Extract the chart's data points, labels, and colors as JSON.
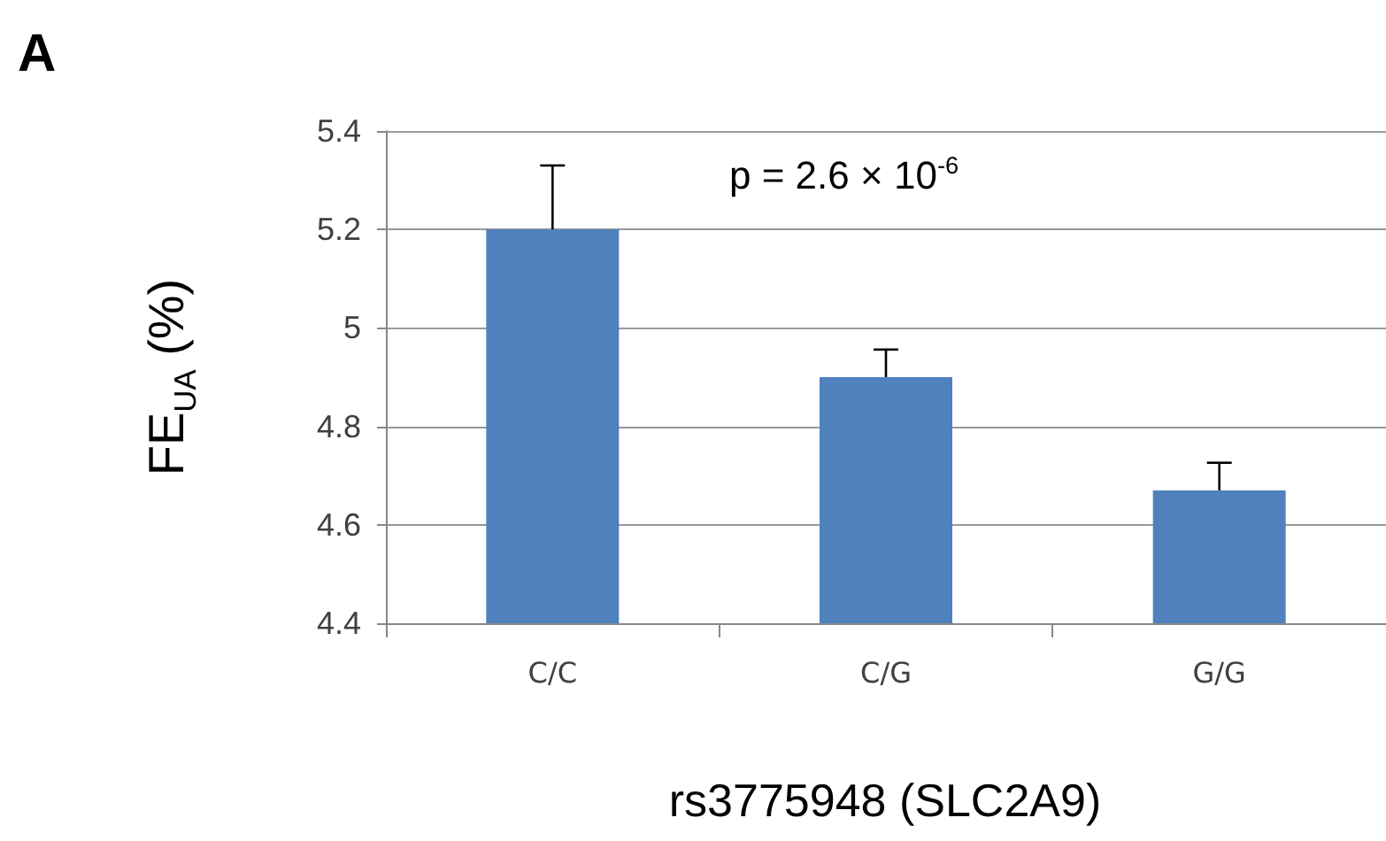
{
  "chart_data": {
    "type": "bar",
    "title": "A",
    "xlabel": "rs3775948 (SLC2A9)",
    "ylabel": "FE$_{UA}$ (%)",
    "annotations": [
      "p = 2.6 × 10$^{-6}$"
    ],
    "categories": [
      "C/C",
      "C/G",
      "G/G"
    ],
    "values": [
      5.2,
      4.9,
      4.67
    ],
    "errors": [
      [
        5.2,
        5.33
      ],
      [
        4.9,
        4.956
      ],
      [
        4.67,
        4.726
      ]
    ],
    "color": "#4f81bd",
    "ylim": [
      4.4,
      5.4
    ],
    "yticks": [
      4.4,
      4.6,
      4.8,
      5,
      5.2,
      5.4
    ],
    "grid": "y"
  }
}
